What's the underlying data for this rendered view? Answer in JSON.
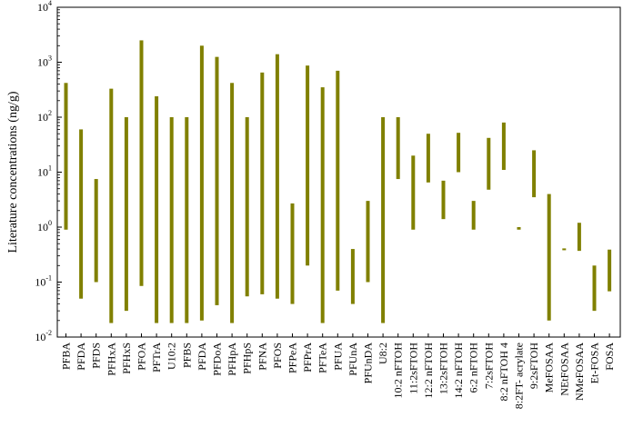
{
  "chart_data": {
    "type": "range-bar",
    "ylabel": "Literature concentrations (ng/g)",
    "yscale": "log",
    "ylim": [
      0.01,
      10000
    ],
    "yticks": [
      {
        "base": "10",
        "exp": "-2",
        "value": 0.01
      },
      {
        "base": "10",
        "exp": "-1",
        "value": 0.1
      },
      {
        "base": "10",
        "exp": "0",
        "value": 1
      },
      {
        "base": "10",
        "exp": "1",
        "value": 10
      },
      {
        "base": "10",
        "exp": "2",
        "value": 100
      },
      {
        "base": "10",
        "exp": "3",
        "value": 1000
      },
      {
        "base": "10",
        "exp": "4",
        "value": 10000
      }
    ],
    "bar_color": "#808000",
    "categories": [
      "PFBA",
      "PFDA",
      "PFDS",
      "PFHxA",
      "PFHxS",
      "PFOA",
      "PFTrA",
      "U10:2",
      "PFBS",
      "PFDA",
      "PFDoA",
      "PFHpA",
      "PFHpS",
      "PFNA",
      "PFOS",
      "PFPeA",
      "PFPrA",
      "PFTeA",
      "PFUA",
      "PFUnA",
      "PFUnDA",
      "U8:2",
      "10:2 nFTOH",
      "11:2sFTOH",
      "12:2 nFTOH",
      "13:2sFTOH",
      "14:2 nFTOH",
      "6:2 nFTOH",
      "7:2sFTOH",
      "8:2 nFTOH 4",
      "8:2FT- acrylate",
      "9:2sFTOH",
      "MeFOSAA",
      "NEtFOSAA",
      "NMeFOSAA",
      "Et-FOSA",
      "FOSA"
    ],
    "ranges": [
      [
        0.9,
        420
      ],
      [
        0.05,
        60
      ],
      [
        0.1,
        7.5
      ],
      [
        0.018,
        330
      ],
      [
        0.03,
        100
      ],
      [
        0.085,
        2500
      ],
      [
        0.018,
        240
      ],
      [
        0.018,
        100
      ],
      [
        0.018,
        100
      ],
      [
        0.02,
        2000
      ],
      [
        0.038,
        1250
      ],
      [
        0.018,
        420
      ],
      [
        0.055,
        100
      ],
      [
        0.06,
        650
      ],
      [
        0.05,
        1400
      ],
      [
        0.04,
        2.7
      ],
      [
        0.2,
        870
      ],
      [
        0.018,
        350
      ],
      [
        0.07,
        700
      ],
      [
        0.04,
        0.4
      ],
      [
        0.1,
        3
      ],
      [
        0.018,
        100
      ],
      [
        7.5,
        100
      ],
      [
        0.9,
        20
      ],
      [
        6.5,
        50
      ],
      [
        1.4,
        7
      ],
      [
        10,
        52
      ],
      [
        0.9,
        3
      ],
      [
        4.8,
        42
      ],
      [
        11,
        80
      ],
      [
        0.9,
        1.0
      ],
      [
        3.5,
        25
      ],
      [
        0.02,
        4
      ],
      [
        0.38,
        0.41
      ],
      [
        0.37,
        1.2
      ],
      [
        0.03,
        0.2
      ],
      [
        0.068,
        0.39
      ]
    ]
  }
}
